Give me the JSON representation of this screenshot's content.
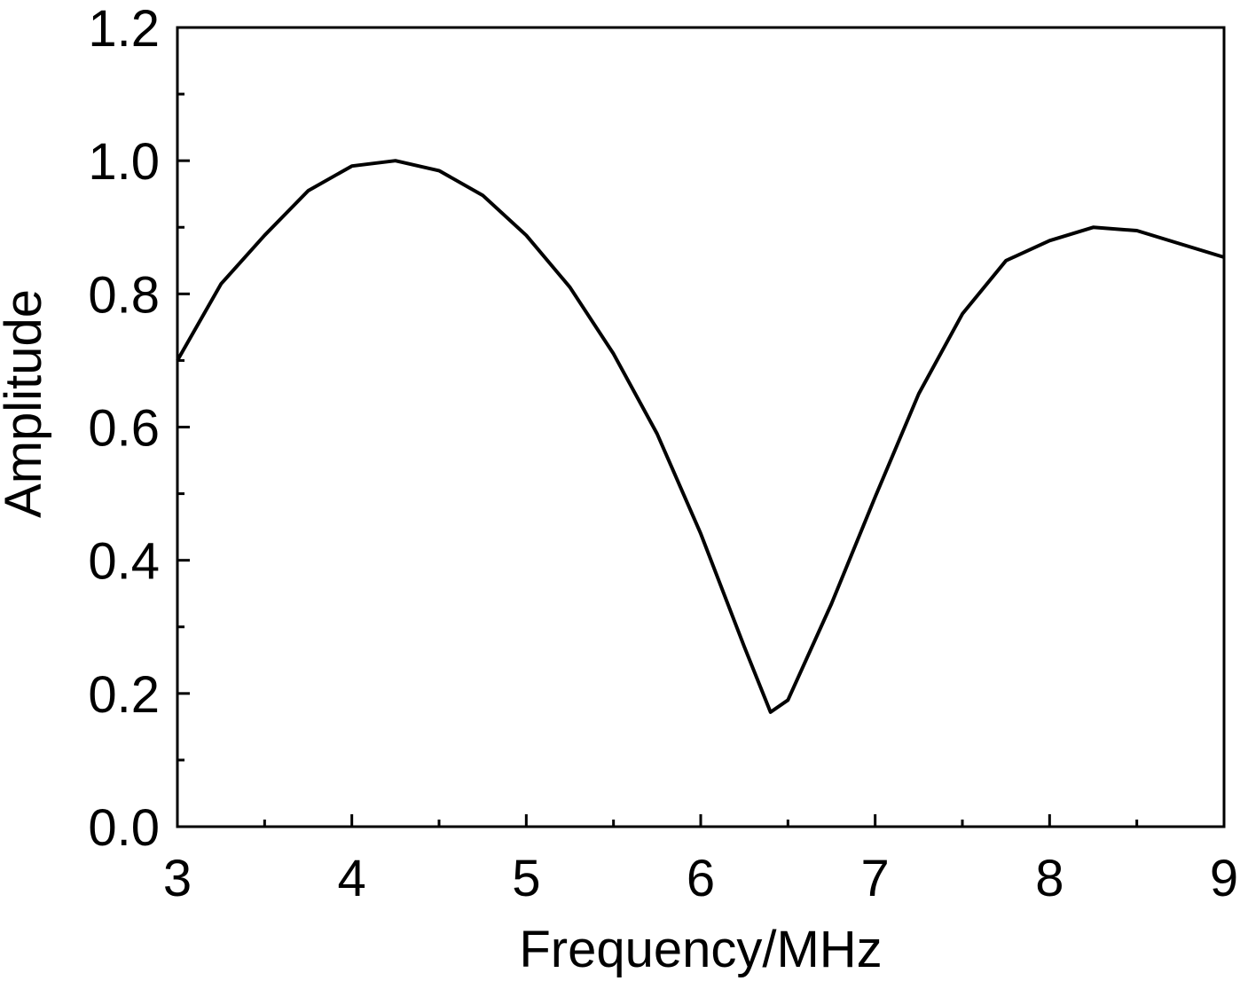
{
  "chart_data": {
    "type": "line",
    "xlabel": "Frequency/MHz",
    "ylabel": "Amplitude",
    "x": [
      3,
      3.25,
      3.5,
      3.75,
      4,
      4.25,
      4.5,
      4.75,
      5,
      5.25,
      5.5,
      5.75,
      6,
      6.25,
      6.4,
      6.5,
      6.75,
      7,
      7.25,
      7.5,
      7.75,
      8,
      8.25,
      8.5,
      8.75,
      9
    ],
    "series": [
      {
        "color": "#000000",
        "values": [
          0.7,
          0.815,
          0.888,
          0.955,
          0.992,
          1.0,
          0.985,
          0.948,
          0.888,
          0.81,
          0.71,
          0.59,
          0.44,
          0.27,
          0.172,
          0.19,
          0.335,
          0.495,
          0.65,
          0.77,
          0.85,
          0.88,
          0.9,
          0.895,
          0.875,
          0.855
        ]
      }
    ],
    "xlim": [
      3,
      9
    ],
    "ylim": [
      0,
      1.2
    ],
    "xticks": [
      3,
      4,
      5,
      6,
      7,
      8,
      9
    ],
    "yticks": [
      {
        "value": 0,
        "label": "0.0"
      },
      0.2,
      0.4,
      0.6,
      0.8,
      {
        "value": 1,
        "label": "1.0"
      },
      1.2
    ]
  }
}
